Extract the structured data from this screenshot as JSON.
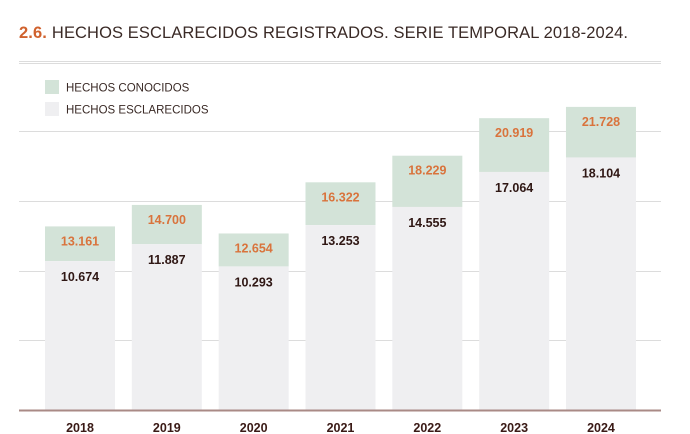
{
  "title": {
    "number": "2.6.",
    "text": "HECHOS ESCLARECIDOS REGISTRADOS. SERIE TEMPORAL 2018-2024."
  },
  "colors": {
    "known": "#d3e3d8",
    "solved": "#efeff1",
    "known_label": "#d9733c",
    "solved_label": "#2f1714",
    "axis": "#a98a86",
    "grid": "#dcdcdc",
    "title_accent": "#d0622e"
  },
  "chart_data": {
    "type": "bar",
    "categories": [
      "2018",
      "2019",
      "2020",
      "2021",
      "2022",
      "2023",
      "2024"
    ],
    "series": [
      {
        "name": "HECHOS CONOCIDOS",
        "values": [
          13161,
          14700,
          12654,
          16322,
          18229,
          20919,
          21728
        ],
        "labels": [
          "13.161",
          "14.700",
          "12.654",
          "16.322",
          "18.229",
          "20.919",
          "21.728"
        ]
      },
      {
        "name": "HECHOS ESCLARECIDOS",
        "values": [
          10674,
          11887,
          10293,
          13253,
          14555,
          17064,
          18104
        ],
        "labels": [
          "10.674",
          "11.887",
          "10.293",
          "13.253",
          "14.555",
          "17.064",
          "18.104"
        ]
      }
    ],
    "ylim": [
      0,
      25000
    ],
    "grid": true,
    "legend_position": "top-left"
  }
}
